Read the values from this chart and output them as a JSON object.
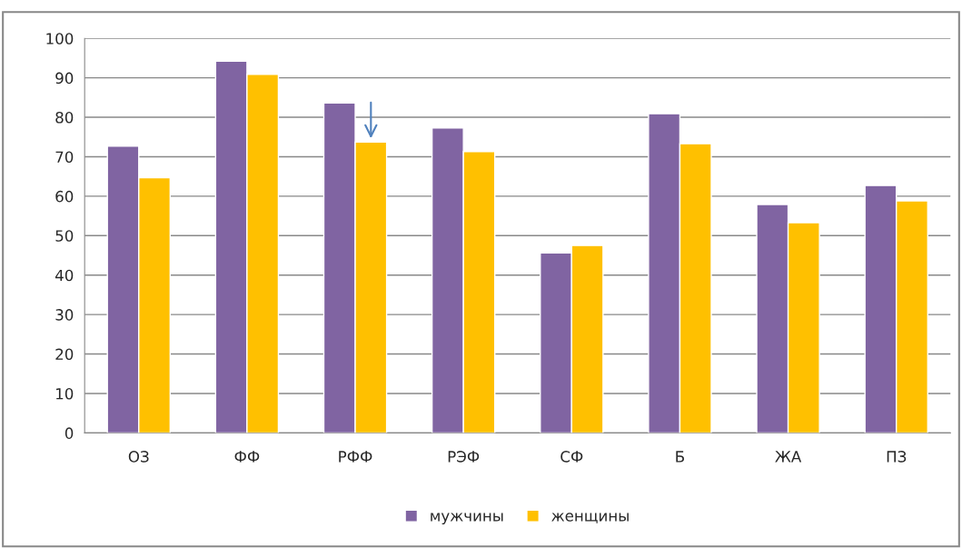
{
  "chart_data": {
    "type": "bar",
    "categories": [
      "ОЗ",
      "ФФ",
      "РФФ",
      "РЭФ",
      "СФ",
      "Б",
      "ЖА",
      "ПЗ"
    ],
    "series": [
      {
        "name": "мужчины",
        "color": "#8064a2",
        "values": [
          72.7,
          94.2,
          83.6,
          77.3,
          45.6,
          80.9,
          57.9,
          62.7
        ]
      },
      {
        "name": "женщины",
        "color": "#ffc000",
        "values": [
          64.7,
          90.9,
          73.7,
          71.3,
          47.5,
          73.3,
          53.3,
          58.8
        ]
      }
    ],
    "ylim": [
      0,
      100
    ],
    "yticks": [
      0,
      10,
      20,
      30,
      40,
      50,
      60,
      70,
      80,
      90,
      100
    ],
    "grid": "y",
    "legend": "bottom"
  }
}
